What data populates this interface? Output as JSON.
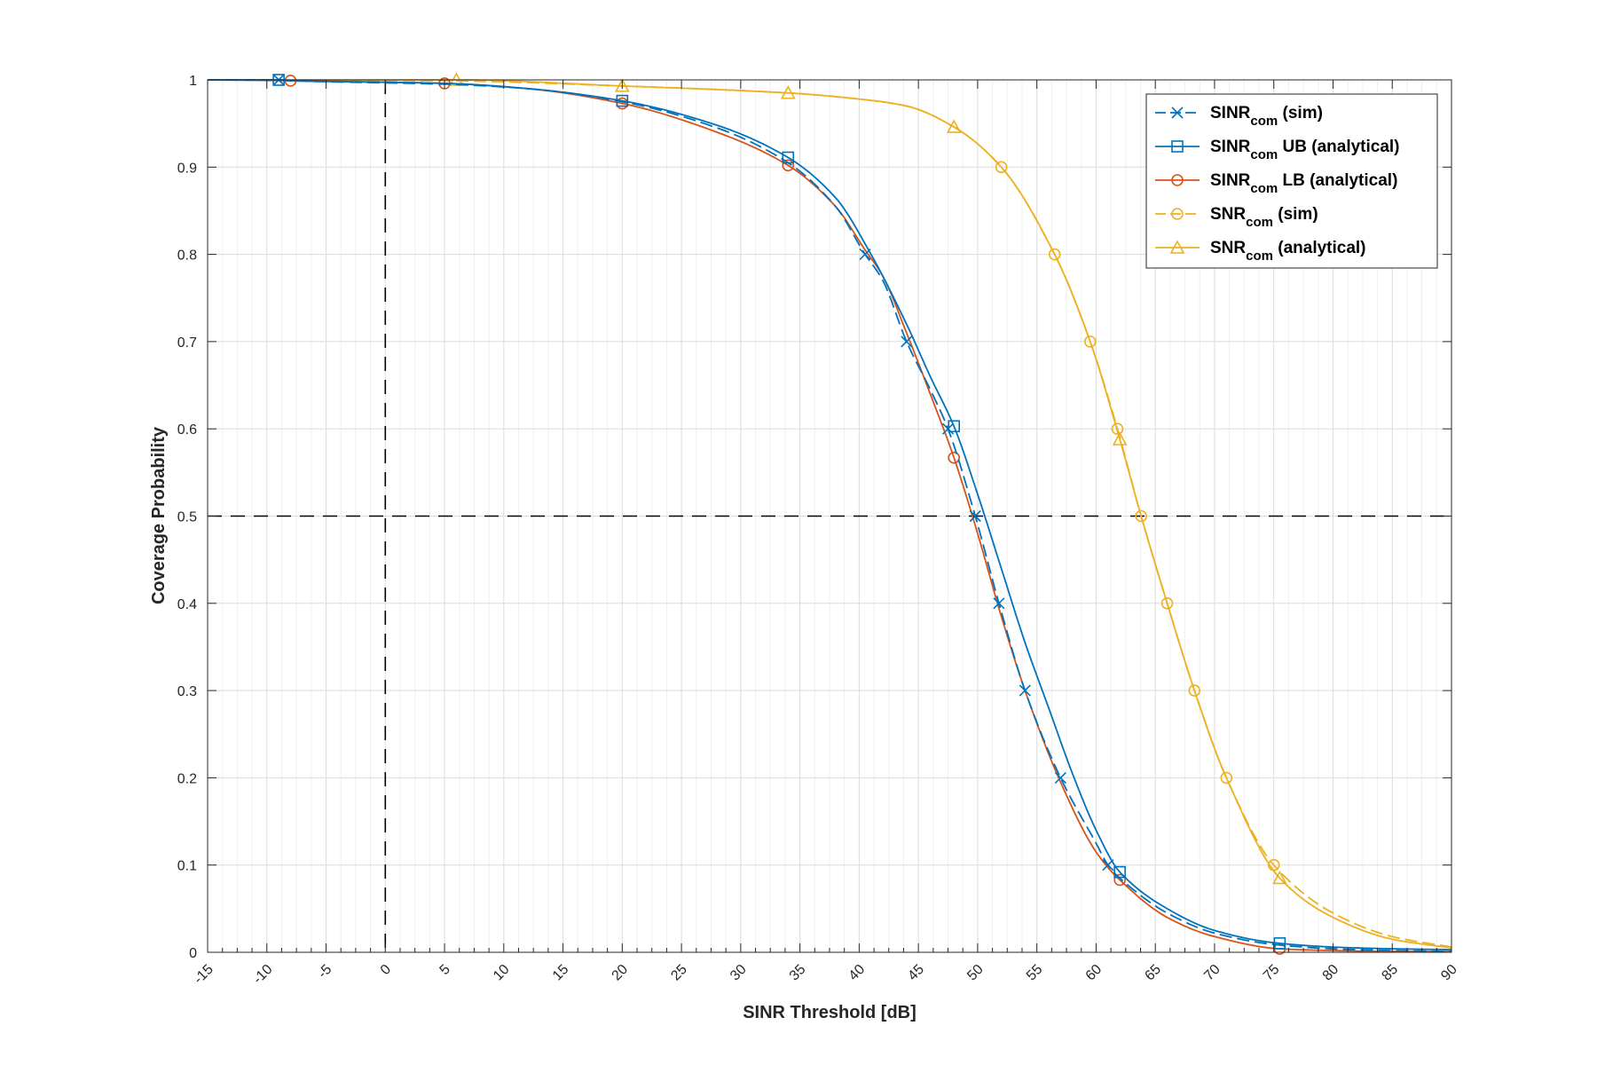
{
  "chart_data": {
    "type": "line",
    "xlabel": "SINR Threshold [dB]",
    "ylabel": "Coverage Probability",
    "xlim": [
      -15,
      90
    ],
    "ylim": [
      0,
      1
    ],
    "xticks": [
      -15,
      -10,
      -5,
      0,
      5,
      10,
      15,
      20,
      25,
      30,
      35,
      40,
      45,
      50,
      55,
      60,
      65,
      70,
      75,
      80,
      85,
      90
    ],
    "yticks": [
      0,
      0.1,
      0.2,
      0.3,
      0.4,
      0.5,
      0.6,
      0.7,
      0.8,
      0.9,
      1
    ],
    "grid": true,
    "reference_lines": [
      {
        "orientation": "vertical",
        "value": 0,
        "style": "dashed",
        "color": "#000000"
      },
      {
        "orientation": "horizontal",
        "value": 0.5,
        "style": "dashed",
        "color": "#000000"
      }
    ],
    "legend": {
      "position": "top-right"
    },
    "series": [
      {
        "name": "SINR",
        "subscript": "com",
        "suffix": "(sim)",
        "color": "#0072BD",
        "dash": true,
        "marker": "x",
        "x": [
          -15,
          -9,
          -8,
          5,
          12,
          20,
          28,
          34,
          38,
          40.5,
          42,
          44,
          46,
          47.5,
          49.8,
          51.8,
          54,
          57,
          60,
          61,
          62,
          66,
          70,
          75,
          80,
          85,
          90
        ],
        "y": [
          1,
          1,
          0.999,
          0.995,
          0.99,
          0.975,
          0.945,
          0.905,
          0.855,
          0.8,
          0.77,
          0.7,
          0.645,
          0.6,
          0.5,
          0.4,
          0.3,
          0.2,
          0.125,
          0.1,
          0.085,
          0.045,
          0.022,
          0.009,
          0.004,
          0.002,
          0.001
        ],
        "markers_at_x": [
          -9,
          40.5,
          44,
          47.5,
          49.8,
          51.8,
          54,
          57,
          61
        ]
      },
      {
        "name": "SINR",
        "subscript": "com",
        "suffix": "UB (analytical)",
        "color": "#0072BD",
        "dash": false,
        "marker": "square",
        "x": [
          -15,
          -9,
          -8,
          5,
          12,
          20,
          28,
          34,
          38,
          41,
          44,
          46,
          48,
          50,
          52,
          54,
          56,
          58,
          60,
          62,
          66,
          70,
          75,
          80,
          85,
          90
        ],
        "y": [
          1,
          1,
          0.999,
          0.996,
          0.99,
          0.976,
          0.948,
          0.911,
          0.865,
          0.8,
          0.72,
          0.66,
          0.603,
          0.525,
          0.44,
          0.355,
          0.28,
          0.205,
          0.14,
          0.092,
          0.05,
          0.025,
          0.011,
          0.006,
          0.004,
          0.003
        ],
        "markers_at_x": [
          -9,
          20,
          34,
          48,
          62,
          75.5
        ]
      },
      {
        "name": "SINR",
        "subscript": "com",
        "suffix": "LB (analytical)",
        "color": "#D95319",
        "dash": false,
        "marker": "circle",
        "x": [
          -15,
          -8,
          5,
          12,
          20,
          28,
          34,
          38,
          40.5,
          42,
          44,
          46,
          48,
          50,
          52,
          54,
          57,
          60,
          62,
          66,
          70,
          75.5,
          80,
          85,
          90
        ],
        "y": [
          1,
          0.999,
          0.996,
          0.99,
          0.973,
          0.94,
          0.902,
          0.855,
          0.805,
          0.775,
          0.71,
          0.64,
          0.567,
          0.48,
          0.385,
          0.3,
          0.195,
          0.115,
          0.083,
          0.04,
          0.018,
          0.004,
          0.002,
          0.001,
          0.001
        ],
        "markers_at_x": [
          -8,
          5,
          20,
          34,
          48,
          62,
          75.5
        ]
      },
      {
        "name": "SNR",
        "subscript": "com",
        "suffix": "(sim)",
        "color": "#EDB120",
        "dash": true,
        "marker": "circle",
        "x": [
          -15,
          5,
          20,
          34,
          40,
          44,
          48,
          52,
          56.5,
          59.5,
          61.8,
          63.8,
          66,
          68.3,
          71,
          75,
          80,
          85,
          90
        ],
        "y": [
          1,
          0.999,
          0.993,
          0.985,
          0.978,
          0.97,
          0.946,
          0.9,
          0.8,
          0.7,
          0.6,
          0.5,
          0.4,
          0.3,
          0.2,
          0.1,
          0.045,
          0.018,
          0.006
        ],
        "markers_at_x": [
          52,
          56.5,
          59.5,
          61.8,
          63.8,
          66,
          68.3,
          71,
          75
        ]
      },
      {
        "name": "SNR",
        "subscript": "com",
        "suffix": "(analytical)",
        "color": "#EDB120",
        "dash": false,
        "marker": "triangle",
        "x": [
          -15,
          6,
          20,
          34,
          40,
          44,
          48,
          52,
          56.5,
          59.5,
          62,
          63.8,
          66,
          68.3,
          71,
          75.5,
          80,
          85,
          90
        ],
        "y": [
          1,
          1,
          0.993,
          0.985,
          0.978,
          0.97,
          0.946,
          0.9,
          0.8,
          0.7,
          0.588,
          0.5,
          0.4,
          0.3,
          0.2,
          0.085,
          0.04,
          0.015,
          0.005
        ],
        "markers_at_x": [
          6,
          20,
          34,
          48,
          62,
          75.5
        ]
      }
    ]
  }
}
